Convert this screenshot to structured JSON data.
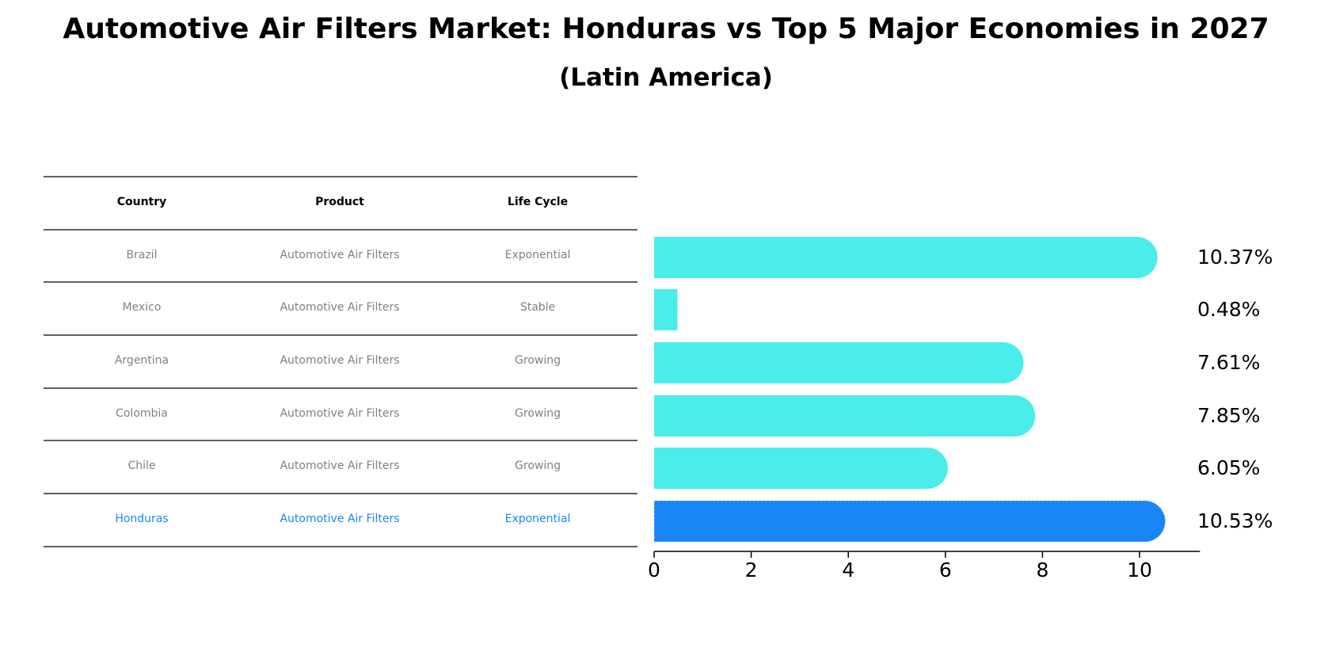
{
  "chart_data": {
    "type": "bar",
    "orientation": "horizontal",
    "title": "Automotive Air Filters Market: Honduras vs Top 5 Major Economies in 2027",
    "subtitle": "(Latin America)",
    "table": {
      "headers": [
        "Country",
        "Product",
        "Life Cycle"
      ],
      "rows": [
        {
          "country": "Brazil",
          "product": "Automotive Air Filters",
          "life_cycle": "Exponential",
          "highlight": false
        },
        {
          "country": "Mexico",
          "product": "Automotive Air Filters",
          "life_cycle": "Stable",
          "highlight": false
        },
        {
          "country": "Argentina",
          "product": "Automotive Air Filters",
          "life_cycle": "Growing",
          "highlight": false
        },
        {
          "country": "Colombia",
          "product": "Automotive Air Filters",
          "life_cycle": "Growing",
          "highlight": false
        },
        {
          "country": "Chile",
          "product": "Automotive Air Filters",
          "life_cycle": "Growing",
          "highlight": false
        },
        {
          "country": "Honduras",
          "product": "Automotive Air Filters",
          "life_cycle": "Exponential",
          "highlight": true
        }
      ]
    },
    "categories": [
      "Brazil",
      "Mexico",
      "Argentina",
      "Colombia",
      "Chile",
      "Honduras"
    ],
    "values": [
      10.37,
      0.48,
      7.61,
      7.85,
      6.05,
      10.53
    ],
    "value_labels": [
      "10.37%",
      "0.48%",
      "7.61%",
      "7.85%",
      "6.05%",
      "10.53%"
    ],
    "xlim": [
      0,
      11
    ],
    "xticks": [
      0,
      2,
      4,
      6,
      8,
      10
    ],
    "xlabel": "",
    "ylabel": "",
    "grid": false,
    "colors": {
      "bar": "#4AEDEA",
      "highlight_bar": "#1A86F5",
      "table_text": "#808080",
      "highlight_text": "#1A86F5",
      "header_text": "#000000",
      "rule": "#000000"
    }
  }
}
